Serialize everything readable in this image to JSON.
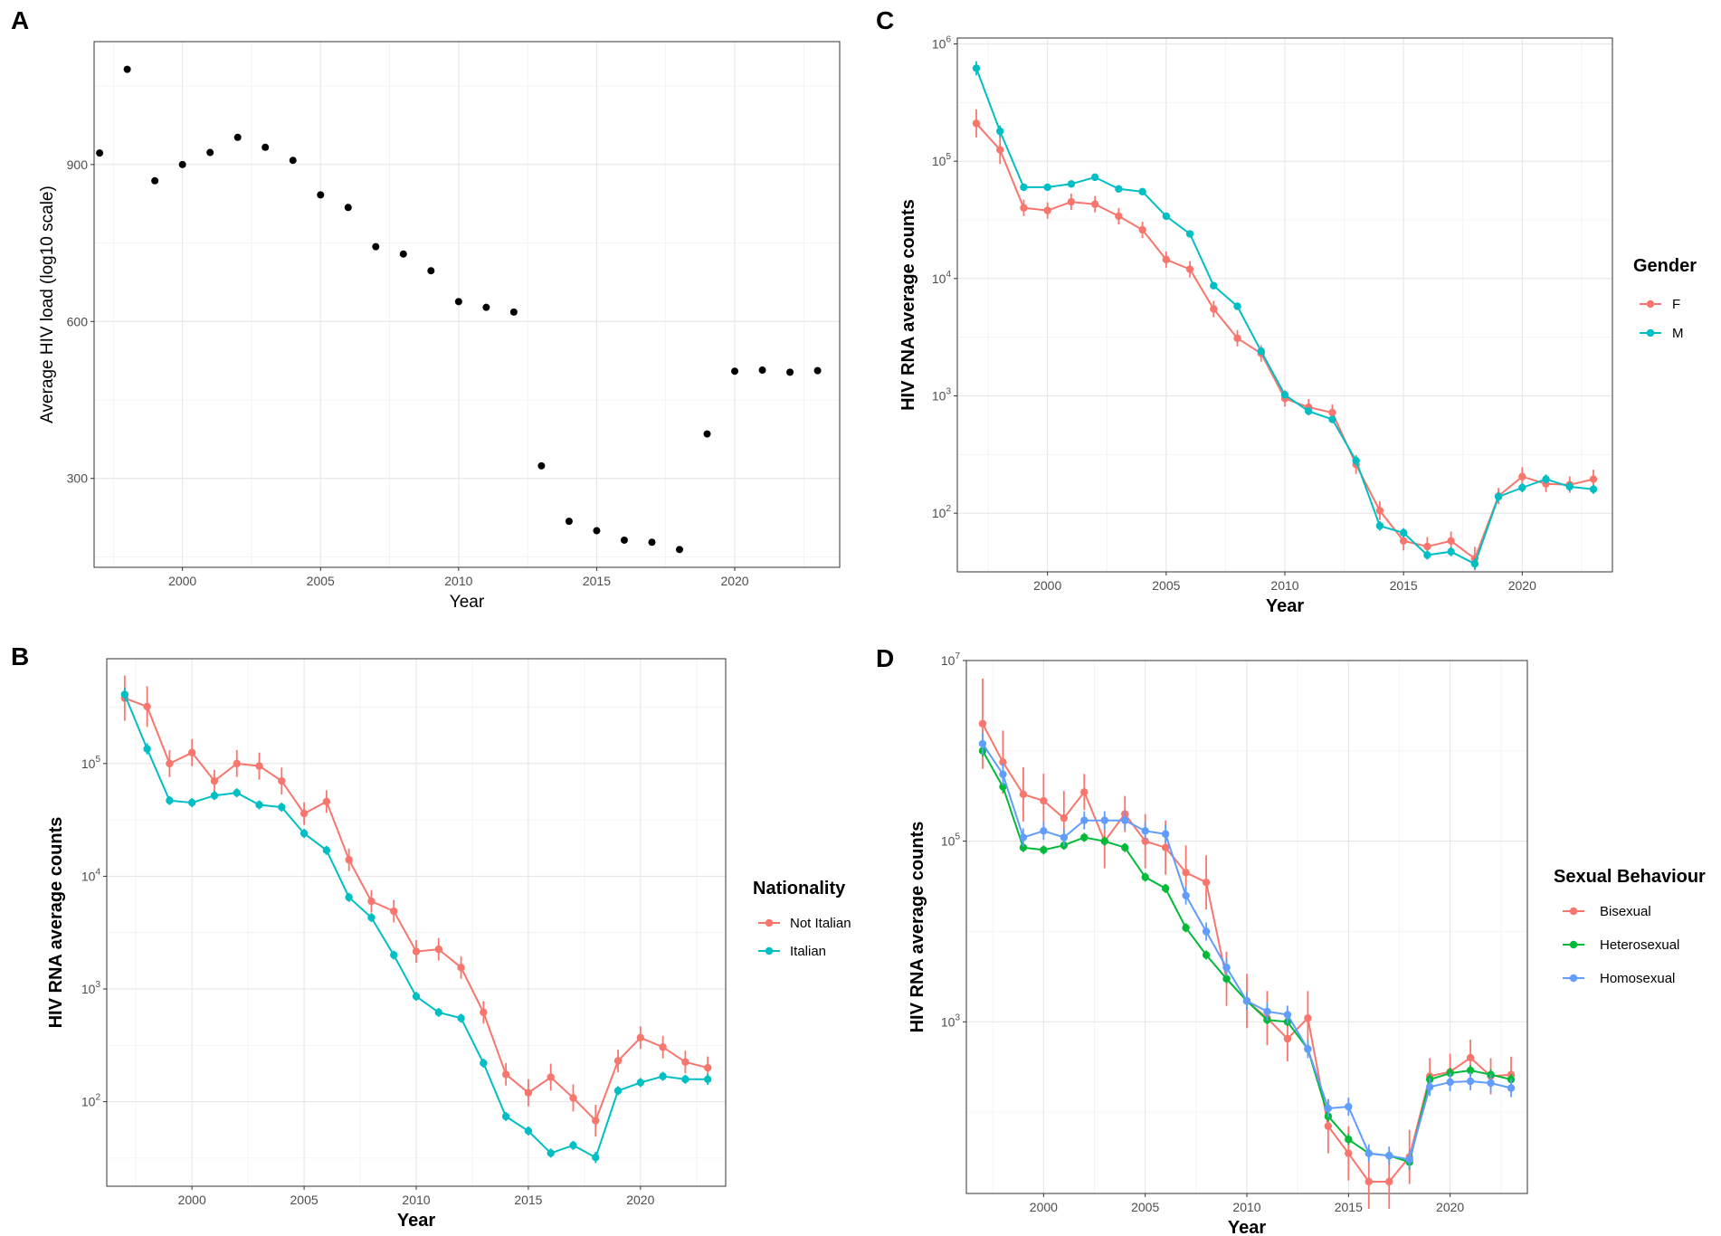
{
  "chart_data": [
    {
      "panel": "A",
      "type": "scatter",
      "title": "",
      "xlabel": "Year",
      "ylabel": "Average HIV load (log10 scale)",
      "xlim": [
        1996.8,
        2023.8
      ],
      "ylim": [
        130,
        1135
      ],
      "x_ticks": [
        2000,
        2005,
        2010,
        2015,
        2020
      ],
      "x_tick_labels": [
        "2000",
        "2005",
        "2010",
        "2015",
        "2020"
      ],
      "y_ticks": [
        300,
        600,
        900
      ],
      "y_tick_labels": [
        "300",
        "600",
        "900"
      ],
      "y_minor": [
        150,
        450,
        750,
        1050
      ],
      "series": [
        {
          "name": "Average HIV load",
          "color": "#000000",
          "x": [
            1997,
            1998,
            1999,
            2000,
            2001,
            2002,
            2003,
            2004,
            2005,
            2006,
            2007,
            2008,
            2009,
            2010,
            2011,
            2012,
            2013,
            2014,
            2015,
            2016,
            2017,
            2018,
            2019,
            2020,
            2021,
            2022,
            2023
          ],
          "y": [
            922,
            1082,
            869,
            900,
            923,
            952,
            933,
            908,
            842,
            818,
            743,
            729,
            697,
            638,
            627,
            618,
            324,
            218,
            200,
            182,
            178,
            164,
            385,
            505,
            507,
            503,
            506
          ]
        }
      ]
    },
    {
      "panel": "C",
      "type": "line",
      "title": "",
      "xlabel": "Year",
      "ylabel": "HIV RNA average counts",
      "yscale": "log10",
      "xlim": [
        1996.2,
        2023.8
      ],
      "ylim_log10": [
        1.5,
        6.05
      ],
      "x_ticks": [
        2000,
        2005,
        2010,
        2015,
        2020
      ],
      "x_tick_labels": [
        "2000",
        "2005",
        "2010",
        "2015",
        "2020"
      ],
      "y_ticks_log10": [
        2,
        3,
        4,
        5,
        6
      ],
      "y_tick_labels": [
        "2",
        "3",
        "4",
        "5",
        "6"
      ],
      "y_minor_log10": [
        1.5,
        2.5,
        3.5,
        4.5,
        5.5
      ],
      "legend_title": "Gender",
      "legend_position": "right",
      "series": [
        {
          "name": "F",
          "color": "#F8766D",
          "x": [
            1997,
            1998,
            1999,
            2000,
            2001,
            2002,
            2003,
            2004,
            2005,
            2006,
            2007,
            2008,
            2009,
            2010,
            2011,
            2012,
            2013,
            2014,
            2015,
            2016,
            2017,
            2018,
            2019,
            2020,
            2021,
            2022,
            2023
          ],
          "y": [
            210000,
            125000,
            40000,
            38000,
            45000,
            43000,
            34000,
            26000,
            14500,
            12000,
            5500,
            3100,
            2300,
            950,
            800,
            720,
            260,
            105,
            58,
            52,
            58,
            41,
            140,
            205,
            178,
            175,
            195
          ],
          "err": [
            0.12,
            0.12,
            0.07,
            0.07,
            0.07,
            0.07,
            0.07,
            0.07,
            0.07,
            0.07,
            0.07,
            0.07,
            0.07,
            0.07,
            0.07,
            0.07,
            0.08,
            0.08,
            0.08,
            0.08,
            0.08,
            0.1,
            0.07,
            0.08,
            0.07,
            0.07,
            0.08
          ]
        },
        {
          "name": "M",
          "color": "#00BFC4",
          "x": [
            1997,
            1998,
            1999,
            2000,
            2001,
            2002,
            2003,
            2004,
            2005,
            2006,
            2007,
            2008,
            2009,
            2010,
            2011,
            2012,
            2013,
            2014,
            2015,
            2016,
            2017,
            2018,
            2019,
            2020,
            2021,
            2022,
            2023
          ],
          "y": [
            620000,
            180000,
            60000,
            60000,
            64000,
            73000,
            58000,
            55000,
            34000,
            24000,
            8700,
            5800,
            2400,
            1020,
            740,
            630,
            280,
            78,
            68,
            44,
            47,
            37,
            138,
            165,
            195,
            168,
            160
          ],
          "err": [
            0.06,
            0.05,
            0.03,
            0.03,
            0.03,
            0.03,
            0.03,
            0.03,
            0.03,
            0.03,
            0.03,
            0.03,
            0.03,
            0.03,
            0.03,
            0.03,
            0.04,
            0.04,
            0.04,
            0.04,
            0.04,
            0.05,
            0.04,
            0.04,
            0.04,
            0.04,
            0.04
          ]
        }
      ]
    },
    {
      "panel": "B",
      "type": "line",
      "title": "",
      "xlabel": "Year",
      "ylabel": "HIV RNA average counts",
      "yscale": "log10",
      "xlim": [
        1996.2,
        2023.8
      ],
      "ylim_log10": [
        1.25,
        5.93
      ],
      "x_ticks": [
        2000,
        2005,
        2010,
        2015,
        2020
      ],
      "x_tick_labels": [
        "2000",
        "2005",
        "2010",
        "2015",
        "2020"
      ],
      "y_ticks_log10": [
        2,
        3,
        4,
        5
      ],
      "y_tick_labels": [
        "2",
        "3",
        "4",
        "5"
      ],
      "y_minor_log10": [
        1.5,
        2.5,
        3.5,
        4.5,
        5.5
      ],
      "legend_title": "Nationality",
      "legend_position": "right",
      "series": [
        {
          "name": "Not Italian",
          "color": "#F8766D",
          "x": [
            1997,
            1998,
            1999,
            2000,
            2001,
            2002,
            2003,
            2004,
            2005,
            2006,
            2007,
            2008,
            2009,
            2010,
            2011,
            2012,
            2013,
            2014,
            2015,
            2016,
            2017,
            2018,
            2019,
            2020,
            2021,
            2022,
            2023
          ],
          "y": [
            380000,
            320000,
            100000,
            125000,
            70000,
            100000,
            95000,
            70000,
            36000,
            46000,
            14000,
            6000,
            4900,
            2150,
            2250,
            1550,
            620,
            175,
            120,
            165,
            108,
            68,
            230,
            370,
            305,
            225,
            200
          ],
          "err": [
            0.2,
            0.18,
            0.12,
            0.12,
            0.1,
            0.12,
            0.12,
            0.12,
            0.1,
            0.1,
            0.1,
            0.1,
            0.1,
            0.1,
            0.1,
            0.1,
            0.1,
            0.1,
            0.12,
            0.12,
            0.12,
            0.14,
            0.1,
            0.1,
            0.1,
            0.1,
            0.1
          ]
        },
        {
          "name": "Italian",
          "color": "#00BFC4",
          "x": [
            1997,
            1998,
            1999,
            2000,
            2001,
            2002,
            2003,
            2004,
            2005,
            2006,
            2007,
            2008,
            2009,
            2010,
            2011,
            2012,
            2013,
            2014,
            2015,
            2016,
            2017,
            2018,
            2019,
            2020,
            2021,
            2022,
            2023
          ],
          "y": [
            410000,
            135000,
            47000,
            45000,
            52000,
            55000,
            43000,
            41000,
            24000,
            17000,
            6500,
            4300,
            2000,
            860,
            620,
            550,
            220,
            74,
            55,
            35,
            41,
            32,
            125,
            148,
            168,
            158,
            158
          ],
          "err": [
            0.06,
            0.05,
            0.04,
            0.04,
            0.04,
            0.04,
            0.04,
            0.04,
            0.04,
            0.04,
            0.04,
            0.04,
            0.04,
            0.04,
            0.04,
            0.04,
            0.04,
            0.04,
            0.04,
            0.04,
            0.04,
            0.05,
            0.04,
            0.04,
            0.04,
            0.04,
            0.05
          ]
        }
      ]
    },
    {
      "panel": "D",
      "type": "line",
      "title": "",
      "xlabel": "Year",
      "ylabel": "HIV RNA average counts",
      "yscale": "log10",
      "xlim": [
        1996.2,
        2023.8
      ],
      "ylim_log10": [
        1.1,
        7.0
      ],
      "x_ticks": [
        2000,
        2005,
        2010,
        2015,
        2020
      ],
      "x_tick_labels": [
        "2000",
        "2005",
        "2010",
        "2015",
        "2020"
      ],
      "y_ticks_log10": [
        3,
        5,
        7
      ],
      "y_tick_labels": [
        "3",
        "5",
        "7"
      ],
      "y_minor_log10": [
        2,
        4,
        6
      ],
      "legend_title": "Sexual Behaviour",
      "legend_position": "right",
      "series": [
        {
          "name": "Bisexual",
          "color": "#F8766D",
          "x": [
            1997,
            1998,
            1999,
            2000,
            2001,
            2002,
            2003,
            2004,
            2005,
            2006,
            2007,
            2008,
            2009,
            2010,
            2011,
            2012,
            2013,
            2014,
            2015,
            2016,
            2017,
            2018,
            2019,
            2020,
            2021,
            2022,
            2023
          ],
          "y": [
            2000000,
            750000,
            330000,
            280000,
            180000,
            350000,
            100000,
            200000,
            100000,
            85000,
            45000,
            35000,
            3000,
            1700,
            1100,
            650,
            1100,
            70,
            35,
            17,
            17,
            32,
            250,
            280,
            400,
            250,
            260
          ],
          "err": [
            0.5,
            0.35,
            0.3,
            0.3,
            0.3,
            0.2,
            0.3,
            0.2,
            0.3,
            0.3,
            0.3,
            0.3,
            0.3,
            0.3,
            0.3,
            0.25,
            0.3,
            0.3,
            0.3,
            0.3,
            0.3,
            0.3,
            0.2,
            0.2,
            0.2,
            0.2,
            0.2
          ]
        },
        {
          "name": "Heterosexual",
          "color": "#00BA38",
          "x": [
            1997,
            1998,
            1999,
            2000,
            2001,
            2002,
            2003,
            2004,
            2005,
            2006,
            2007,
            2008,
            2009,
            2010,
            2011,
            2012,
            2013,
            2014,
            2015,
            2016,
            2017,
            2018,
            2019,
            2020,
            2021,
            2022,
            2023
          ],
          "y": [
            1000000,
            400000,
            85000,
            80000,
            90000,
            110000,
            100000,
            85000,
            40000,
            30000,
            11000,
            5500,
            3000,
            1700,
            1050,
            1000,
            500,
            90,
            50,
            35,
            33,
            28,
            230,
            270,
            290,
            260,
            230
          ],
          "err": [
            0.06,
            0.06,
            0.05,
            0.05,
            0.05,
            0.05,
            0.05,
            0.05,
            0.05,
            0.05,
            0.05,
            0.05,
            0.05,
            0.05,
            0.05,
            0.05,
            0.06,
            0.06,
            0.06,
            0.06,
            0.06,
            0.08,
            0.06,
            0.06,
            0.06,
            0.06,
            0.06
          ]
        },
        {
          "name": "Homosexual",
          "color": "#619CFF",
          "x": [
            1997,
            1998,
            1999,
            2000,
            2001,
            2002,
            2003,
            2004,
            2005,
            2006,
            2007,
            2008,
            2009,
            2010,
            2011,
            2012,
            2013,
            2014,
            2015,
            2016,
            2017,
            2018,
            2019,
            2020,
            2021,
            2022,
            2023
          ],
          "y": [
            1200000,
            550000,
            110000,
            130000,
            110000,
            170000,
            170000,
            170000,
            130000,
            120000,
            25000,
            10000,
            4000,
            1700,
            1300,
            1200,
            500,
            110,
            115,
            35,
            33,
            30,
            190,
            215,
            220,
            210,
            185
          ],
          "err": [
            0.12,
            0.12,
            0.1,
            0.1,
            0.1,
            0.1,
            0.1,
            0.1,
            0.1,
            0.1,
            0.1,
            0.1,
            0.1,
            0.1,
            0.1,
            0.1,
            0.1,
            0.1,
            0.1,
            0.1,
            0.1,
            0.1,
            0.1,
            0.1,
            0.1,
            0.1,
            0.1
          ]
        }
      ]
    }
  ]
}
